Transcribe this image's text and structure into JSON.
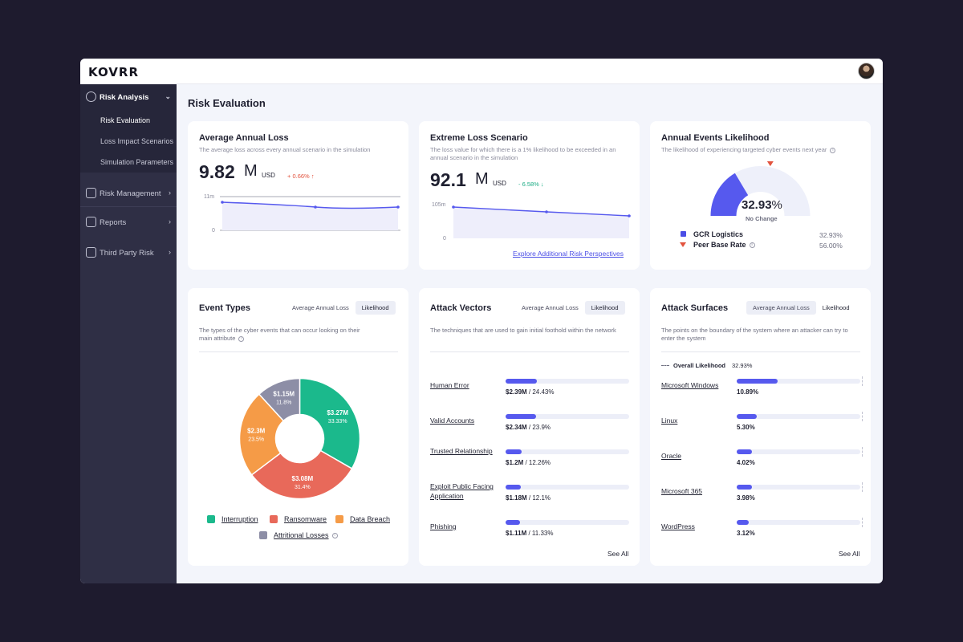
{
  "app": {
    "logo": "KOVRR"
  },
  "sidebar": {
    "groups": [
      {
        "label": "Risk Analysis",
        "icon": "risk-analysis-icon"
      },
      {
        "label": "Risk Management",
        "icon": "shield-icon"
      },
      {
        "label": "Reports",
        "icon": "reports-icon"
      },
      {
        "label": "Third Party Risk",
        "icon": "third-party-icon"
      }
    ],
    "subitems": [
      "Risk Evaluation",
      "Loss Impact Scenarios",
      "Simulation Parameters"
    ]
  },
  "page": {
    "title": "Risk Evaluation"
  },
  "aal": {
    "title": "Average Annual Loss",
    "subtitle": "The average loss across every annual scenario in the simulation",
    "value": "9.82",
    "unit": "M",
    "currency": "USD",
    "delta": "+ 0.66% ↑",
    "y_top": "11m",
    "y_bottom": "0"
  },
  "els": {
    "title": "Extreme Loss Scenario",
    "subtitle_line1": "The loss value for which there is a 1% likelihood to be exceeded in an",
    "subtitle_line2": "annual scenario in the simulation",
    "value": "92.1",
    "unit": "M",
    "currency": "USD",
    "delta": "- 6.58% ↓",
    "y_top": "105m",
    "y_bottom": "0",
    "link": "Explore Additional Risk Perspectives"
  },
  "ael": {
    "title": "Annual Events Likelihood",
    "subtitle": "The likelihood of experiencing targeted cyber events next year",
    "gauge_value": "32.93",
    "gauge_pct": "%",
    "gauge_change": "No Change",
    "gauge_fraction": 0.3293,
    "peer_fraction": 0.56,
    "legend": [
      {
        "label": "GCR Logistics",
        "value": "32.93%"
      },
      {
        "label": "Peer Base Rate",
        "value": "56.00%"
      }
    ]
  },
  "event_types": {
    "title": "Event Types",
    "toggle": [
      "Average Annual Loss",
      "Likelihood"
    ],
    "subtitle_line1": "The types of the cyber events that can occur looking on  their",
    "subtitle_line2": "main attribute",
    "legend": [
      "Interruption",
      "Ransomware",
      "Data Breach",
      "Attritional Losses"
    ]
  },
  "chart_data": {
    "type": "pie",
    "categories": [
      "Interruption",
      "Ransomware",
      "Data Breach",
      "Attritional Losses"
    ],
    "values": [
      33.33,
      31.4,
      23.5,
      11.8
    ],
    "value_labels": [
      "$3.27M",
      "$3.08M",
      "$2.3M",
      "$1.15M"
    ],
    "percent_labels": [
      "33.33%",
      "31.4%",
      "23.5%",
      "11.8%"
    ],
    "colors": [
      "#1bb98c",
      "#e8695a",
      "#f59b47",
      "#8d8ea6"
    ]
  },
  "attack_vectors": {
    "title": "Attack Vectors",
    "toggle": [
      "Average Annual Loss",
      "Likelihood"
    ],
    "subtitle": "The techniques that are used to gain initial foothold within the network",
    "see_all": "See All",
    "items": [
      {
        "name": "Human Error",
        "amount": "$2.39M",
        "pct": "24.43%",
        "fraction": 0.2443
      },
      {
        "name": "Valid Accounts",
        "amount": "$2.34M",
        "pct": "23.9%",
        "fraction": 0.239
      },
      {
        "name": "Trusted Relationship",
        "amount": "$1.2M",
        "pct": "12.26%",
        "fraction": 0.1226
      },
      {
        "name": "Exploit Public Facing Application",
        "amount": "$1.18M",
        "pct": "12.1%",
        "fraction": 0.121
      },
      {
        "name": "Phishing",
        "amount": "$1.11M",
        "pct": "11.33%",
        "fraction": 0.1133
      }
    ]
  },
  "attack_surfaces": {
    "title": "Attack Surfaces",
    "toggle": [
      "Average Annual Loss",
      "Likelihood"
    ],
    "subtitle_line1": "The points on the boundary of the system where an attacker can try to",
    "subtitle_line2": "enter  the system",
    "overall_label": "Overall Likelihood",
    "overall_value": "32.93%",
    "see_all": "See All",
    "items": [
      {
        "name": "Microsoft Windows",
        "pct": "10.89%",
        "fraction": 0.1089
      },
      {
        "name": "Linux",
        "pct": "5.30%",
        "fraction": 0.053
      },
      {
        "name": "Oracle",
        "pct": "4.02%",
        "fraction": 0.0402
      },
      {
        "name": "Microsoft 365",
        "pct": "3.98%",
        "fraction": 0.0398
      },
      {
        "name": "WordPress",
        "pct": "3.12%",
        "fraction": 0.0312
      }
    ]
  }
}
